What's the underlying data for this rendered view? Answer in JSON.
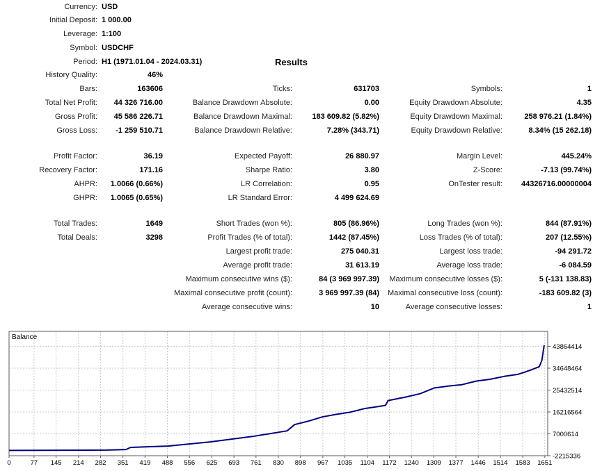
{
  "header": {
    "results_title": "Results"
  },
  "report": {
    "rows": [
      {
        "c1": {
          "label": "Currency:",
          "value": "USD"
        }
      },
      {
        "c1": {
          "label": "Initial Deposit:",
          "value": "1 000.00"
        }
      },
      {
        "c1": {
          "label": "Leverage:",
          "value": "1:100"
        }
      },
      {
        "c1": {
          "label": "Symbol:",
          "value": "USDCHF"
        }
      },
      {
        "c1": {
          "label": "Period:",
          "value": "H1 (1971.01.04 - 2024.03.31)"
        }
      },
      {
        "c1": {
          "label": "History Quality:",
          "value": "46%"
        }
      },
      {
        "c1": {
          "label": "Bars:",
          "value": "163606"
        },
        "c2": {
          "label": "Ticks:",
          "value": "631703"
        },
        "c3": {
          "label": "Symbols:",
          "value": "1"
        }
      },
      {
        "c1": {
          "label": "Total Net Profit:",
          "value": "44 326 716.00"
        },
        "c2": {
          "label": "Balance Drawdown Absolute:",
          "value": "0.00"
        },
        "c3": {
          "label": "Equity Drawdown Absolute:",
          "value": "4.35"
        }
      },
      {
        "c1": {
          "label": "Gross Profit:",
          "value": "45 586 226.71"
        },
        "c2": {
          "label": "Balance Drawdown Maximal:",
          "value": "183 609.82 (5.82%)"
        },
        "c3": {
          "label": "Equity Drawdown Maximal:",
          "value": "258 976.21 (1.84%)"
        }
      },
      {
        "c1": {
          "label": "Gross Loss:",
          "value": "-1 259 510.71"
        },
        "c2": {
          "label": "Balance Drawdown Relative:",
          "value": "7.28% (343.71)"
        },
        "c3": {
          "label": "Equity Drawdown Relative:",
          "value": "8.34% (15 262.18)"
        }
      },
      {
        "c1": {
          "label": "Profit Factor:",
          "value": "36.19"
        },
        "c2": {
          "label": "Expected Payoff:",
          "value": "26 880.97"
        },
        "c3": {
          "label": "Margin Level:",
          "value": "445.24%"
        }
      },
      {
        "c1": {
          "label": "Recovery Factor:",
          "value": "171.16"
        },
        "c2": {
          "label": "Sharpe Ratio:",
          "value": "3.80"
        },
        "c3": {
          "label": "Z-Score:",
          "value": "-7.13 (99.74%)"
        }
      },
      {
        "c1": {
          "label": "AHPR:",
          "value": "1.0066 (0.66%)"
        },
        "c2": {
          "label": "LR Correlation:",
          "value": "0.95"
        },
        "c3": {
          "label": "OnTester result:",
          "value": "44326716.00000004"
        }
      },
      {
        "c1": {
          "label": "GHPR:",
          "value": "1.0065 (0.65%)"
        },
        "c2": {
          "label": "LR Standard Error:",
          "value": "4 499 624.69"
        }
      },
      {
        "c1": {
          "label": "Total Trades:",
          "value": "1649"
        },
        "c2": {
          "label": "Short Trades (won %):",
          "value": "805 (86.96%)"
        },
        "c3": {
          "label": "Long Trades (won %):",
          "value": "844 (87.91%)"
        }
      },
      {
        "c1": {
          "label": "Total Deals:",
          "value": "3298"
        },
        "c2": {
          "label": "Profit Trades (% of total):",
          "value": "1442 (87.45%)"
        },
        "c3": {
          "label": "Loss Trades (% of total):",
          "value": "207 (12.55%)"
        }
      },
      {
        "c2": {
          "label": "Largest profit trade:",
          "value": "275 040.31"
        },
        "c3": {
          "label": "Largest loss trade:",
          "value": "-94 291.72"
        }
      },
      {
        "c2": {
          "label": "Average profit trade:",
          "value": "31 613.19"
        },
        "c3": {
          "label": "Average loss trade:",
          "value": "-6 084.59"
        }
      },
      {
        "c2": {
          "label": "Maximum consecutive wins ($):",
          "value": "84 (3 969 997.39)"
        },
        "c3": {
          "label": "Maximum consecutive losses ($):",
          "value": "5 (-131 138.83)"
        }
      },
      {
        "c2": {
          "label": "Maximal consecutive profit (count):",
          "value": "3 969 997.39 (84)"
        },
        "c3": {
          "label": "Maximal consecutive loss (count):",
          "value": "-183 609.82 (3)"
        }
      },
      {
        "c2": {
          "label": "Average consecutive wins:",
          "value": "10"
        },
        "c3": {
          "label": "Average consecutive losses:",
          "value": "1"
        }
      }
    ]
  },
  "chart_data": {
    "type": "line",
    "title": "Balance",
    "series": [
      {
        "name": "Balance",
        "x": [
          0,
          300,
          360,
          375,
          490,
          620,
          750,
          857,
          880,
          921,
          965,
          1008,
          1051,
          1094,
          1137,
          1160,
          1168,
          1223,
          1267,
          1310,
          1353,
          1396,
          1439,
          1483,
          1526,
          1569,
          1590,
          1612,
          1634,
          1642,
          1649
        ],
        "y": [
          1000,
          150000,
          400000,
          1300000,
          1850000,
          3600000,
          5900000,
          8250000,
          10900000,
          12300000,
          14100000,
          15200000,
          16100000,
          17600000,
          18500000,
          19000000,
          21000000,
          22500000,
          23900000,
          26300000,
          27100000,
          27700000,
          29200000,
          30000000,
          31200000,
          32100000,
          33000000,
          34100000,
          35300000,
          37900000,
          44327716
        ]
      }
    ],
    "xlabel": "",
    "ylabel": "",
    "xlim": [
      0,
      1660
    ],
    "ylim": [
      -2215336,
      50150000
    ],
    "x_ticks": [
      0,
      77,
      145,
      214,
      282,
      351,
      419,
      488,
      556,
      625,
      693,
      761,
      830,
      898,
      967,
      1035,
      1104,
      1172,
      1240,
      1309,
      1377,
      1446,
      1514,
      1583,
      1651
    ],
    "y_ticks": [
      43864414,
      34648464,
      25432514,
      16216564,
      7000614,
      -2215336
    ],
    "grid": true,
    "legend_position": "none",
    "line_color": "#000080",
    "grid_color": "#c9c9c9",
    "border_color": "#5a5a5a"
  }
}
